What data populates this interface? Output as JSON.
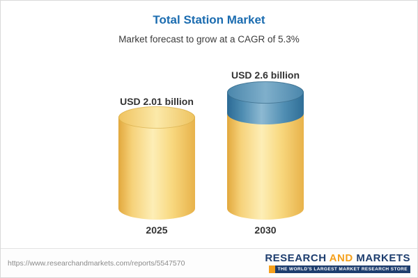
{
  "chart": {
    "title": "Total Station Market",
    "subtitle": "Market forecast to grow at a CAGR of 5.3%"
  },
  "chart_data": {
    "type": "bar",
    "title": "Total Station Market",
    "subtitle": "Market forecast to grow at a CAGR of 5.3%",
    "categories": [
      "2025",
      "2030"
    ],
    "values": [
      2.01,
      2.6
    ],
    "value_labels": [
      "USD 2.01 billion",
      "USD 2.6 billion"
    ],
    "unit": "USD billion",
    "cagr_pct": 5.3,
    "ylim": [
      0,
      3
    ],
    "grid": false,
    "legend": "none",
    "colors": {
      "bar_body": "#F6D27A",
      "bar_growth_segment": "#4F8DB2",
      "title": "#1B6CB0"
    }
  },
  "footer": {
    "url": "https://www.researchandmarkets.com/reports/5547570",
    "logo": {
      "research": "RESEARCH",
      "and": "AND",
      "markets": "MARKETS",
      "tagline": "THE WORLD'S LARGEST MARKET RESEARCH STORE"
    }
  }
}
